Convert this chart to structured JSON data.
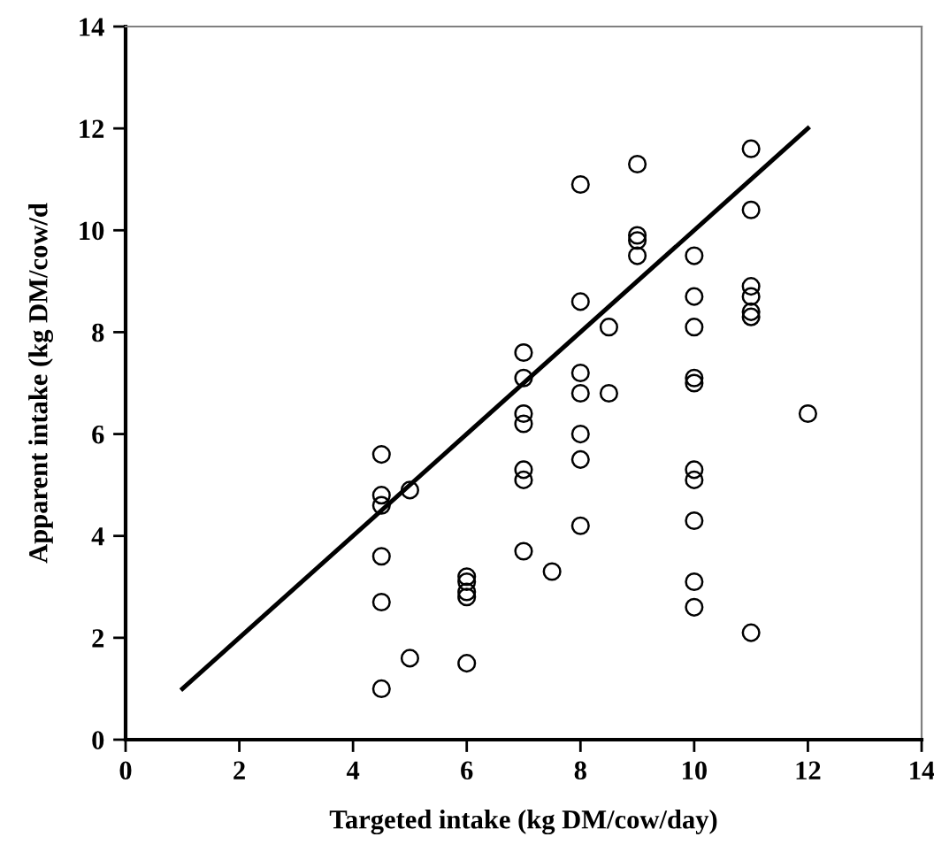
{
  "chart_data": {
    "type": "scatter",
    "xlabel": "Targeted intake (kg DM/cow/day)",
    "ylabel": "Apparent intake (kg DM/cow/d",
    "xlim": [
      0,
      14
    ],
    "ylim": [
      0,
      14
    ],
    "xticks": [
      0,
      2,
      4,
      6,
      8,
      10,
      12,
      14
    ],
    "yticks": [
      0,
      2,
      4,
      6,
      8,
      10,
      12,
      14
    ],
    "grid": false,
    "legend": false,
    "marker": "circle",
    "series": [
      {
        "color": "#000000",
        "x": [
          4.5,
          4.5,
          4.5,
          4.5,
          4.5,
          4.5,
          5,
          5,
          6,
          6,
          6,
          6,
          6,
          7,
          7,
          7,
          7,
          7,
          7,
          7,
          7.5,
          8,
          8,
          8,
          8,
          8,
          8,
          8,
          8.5,
          8.5,
          9,
          9,
          9,
          9,
          10,
          10,
          10,
          10,
          10,
          10,
          10,
          10,
          10,
          10,
          11,
          11,
          11,
          11,
          11,
          11,
          11,
          12
        ],
        "values": [
          5.6,
          4.8,
          4.6,
          3.6,
          2.7,
          1.0,
          4.9,
          1.6,
          3.2,
          3.1,
          2.9,
          2.8,
          1.5,
          7.6,
          7.1,
          6.4,
          6.2,
          5.3,
          5.1,
          3.7,
          3.3,
          10.9,
          8.6,
          7.2,
          6.8,
          6.0,
          5.5,
          4.2,
          8.1,
          6.8,
          11.3,
          9.9,
          9.8,
          9.5,
          9.5,
          8.7,
          8.1,
          7.1,
          7.0,
          5.3,
          5.1,
          4.3,
          3.1,
          2.6,
          11.6,
          10.4,
          8.9,
          8.7,
          8.4,
          8.3,
          2.1,
          6.4
        ]
      },
      {
        "type": "line",
        "color": "#000000",
        "marker": "none",
        "line_style": "solid",
        "x": [
          1,
          12
        ],
        "values": [
          1,
          12
        ]
      }
    ]
  }
}
